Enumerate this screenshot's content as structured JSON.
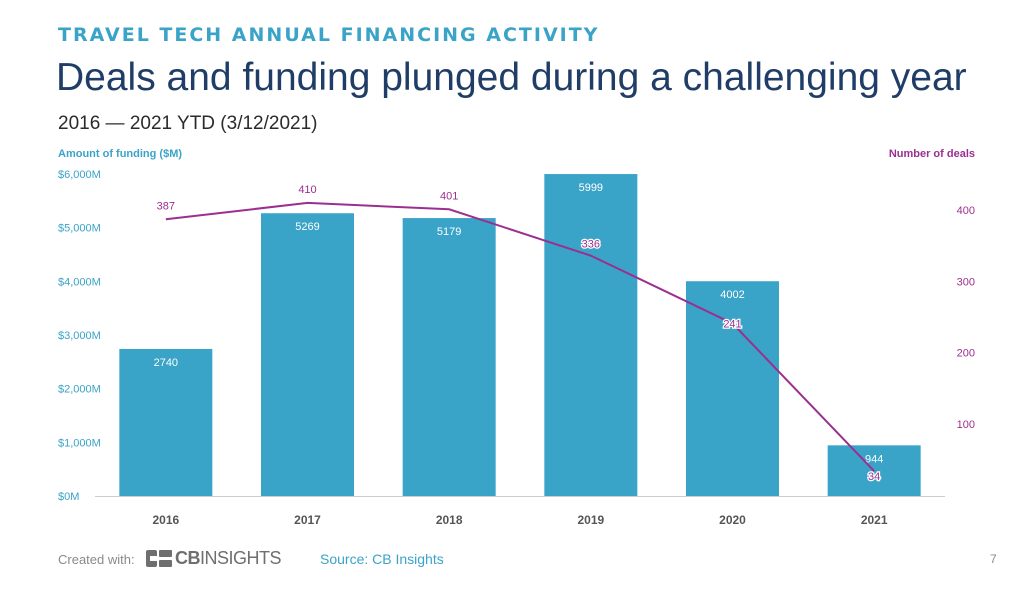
{
  "header": {
    "kicker": "TRAVEL TECH ANNUAL FINANCING ACTIVITY",
    "title": "Deals and funding plunged during a challenging year",
    "subtitle": "2016 — 2021 YTD (3/12/2021)"
  },
  "footer": {
    "created_with": "Created with:",
    "logo_bold": "CB",
    "logo_light": "INSIGHTS",
    "source": "Source: CB Insights",
    "page_number": "7"
  },
  "colors": {
    "bar": "#3aa3c8",
    "line": "#9b2f8f",
    "left_axis": "#3aa3c8",
    "right_axis": "#9b2f8f",
    "title": "#1f3d66"
  },
  "chart_data": {
    "type": "bar",
    "categories": [
      "2016",
      "2017",
      "2018",
      "2019",
      "2020",
      "2021"
    ],
    "series": [
      {
        "name": "Amount of funding ($M)",
        "type": "bar",
        "axis": "left",
        "values": [
          2740,
          5269,
          5179,
          5999,
          4002,
          944
        ]
      },
      {
        "name": "Number of deals",
        "type": "line",
        "axis": "right",
        "values": [
          387,
          410,
          401,
          336,
          241,
          34
        ]
      }
    ],
    "left_axis": {
      "label": "Amount of funding ($M)",
      "ylim": [
        0,
        6000
      ],
      "ticks": [
        0,
        1000,
        2000,
        3000,
        4000,
        5000,
        6000
      ],
      "tick_labels": [
        "$0M",
        "$1,000M",
        "$2,000M",
        "$3,000M",
        "$4,000M",
        "$5,000M",
        "$6,000M"
      ]
    },
    "right_axis": {
      "label": "Number of deals",
      "ylim": [
        0,
        450
      ],
      "ticks": [
        100,
        200,
        300,
        400
      ],
      "tick_labels": [
        "100",
        "200",
        "300",
        "400"
      ]
    },
    "grid": false,
    "legend": "none"
  }
}
